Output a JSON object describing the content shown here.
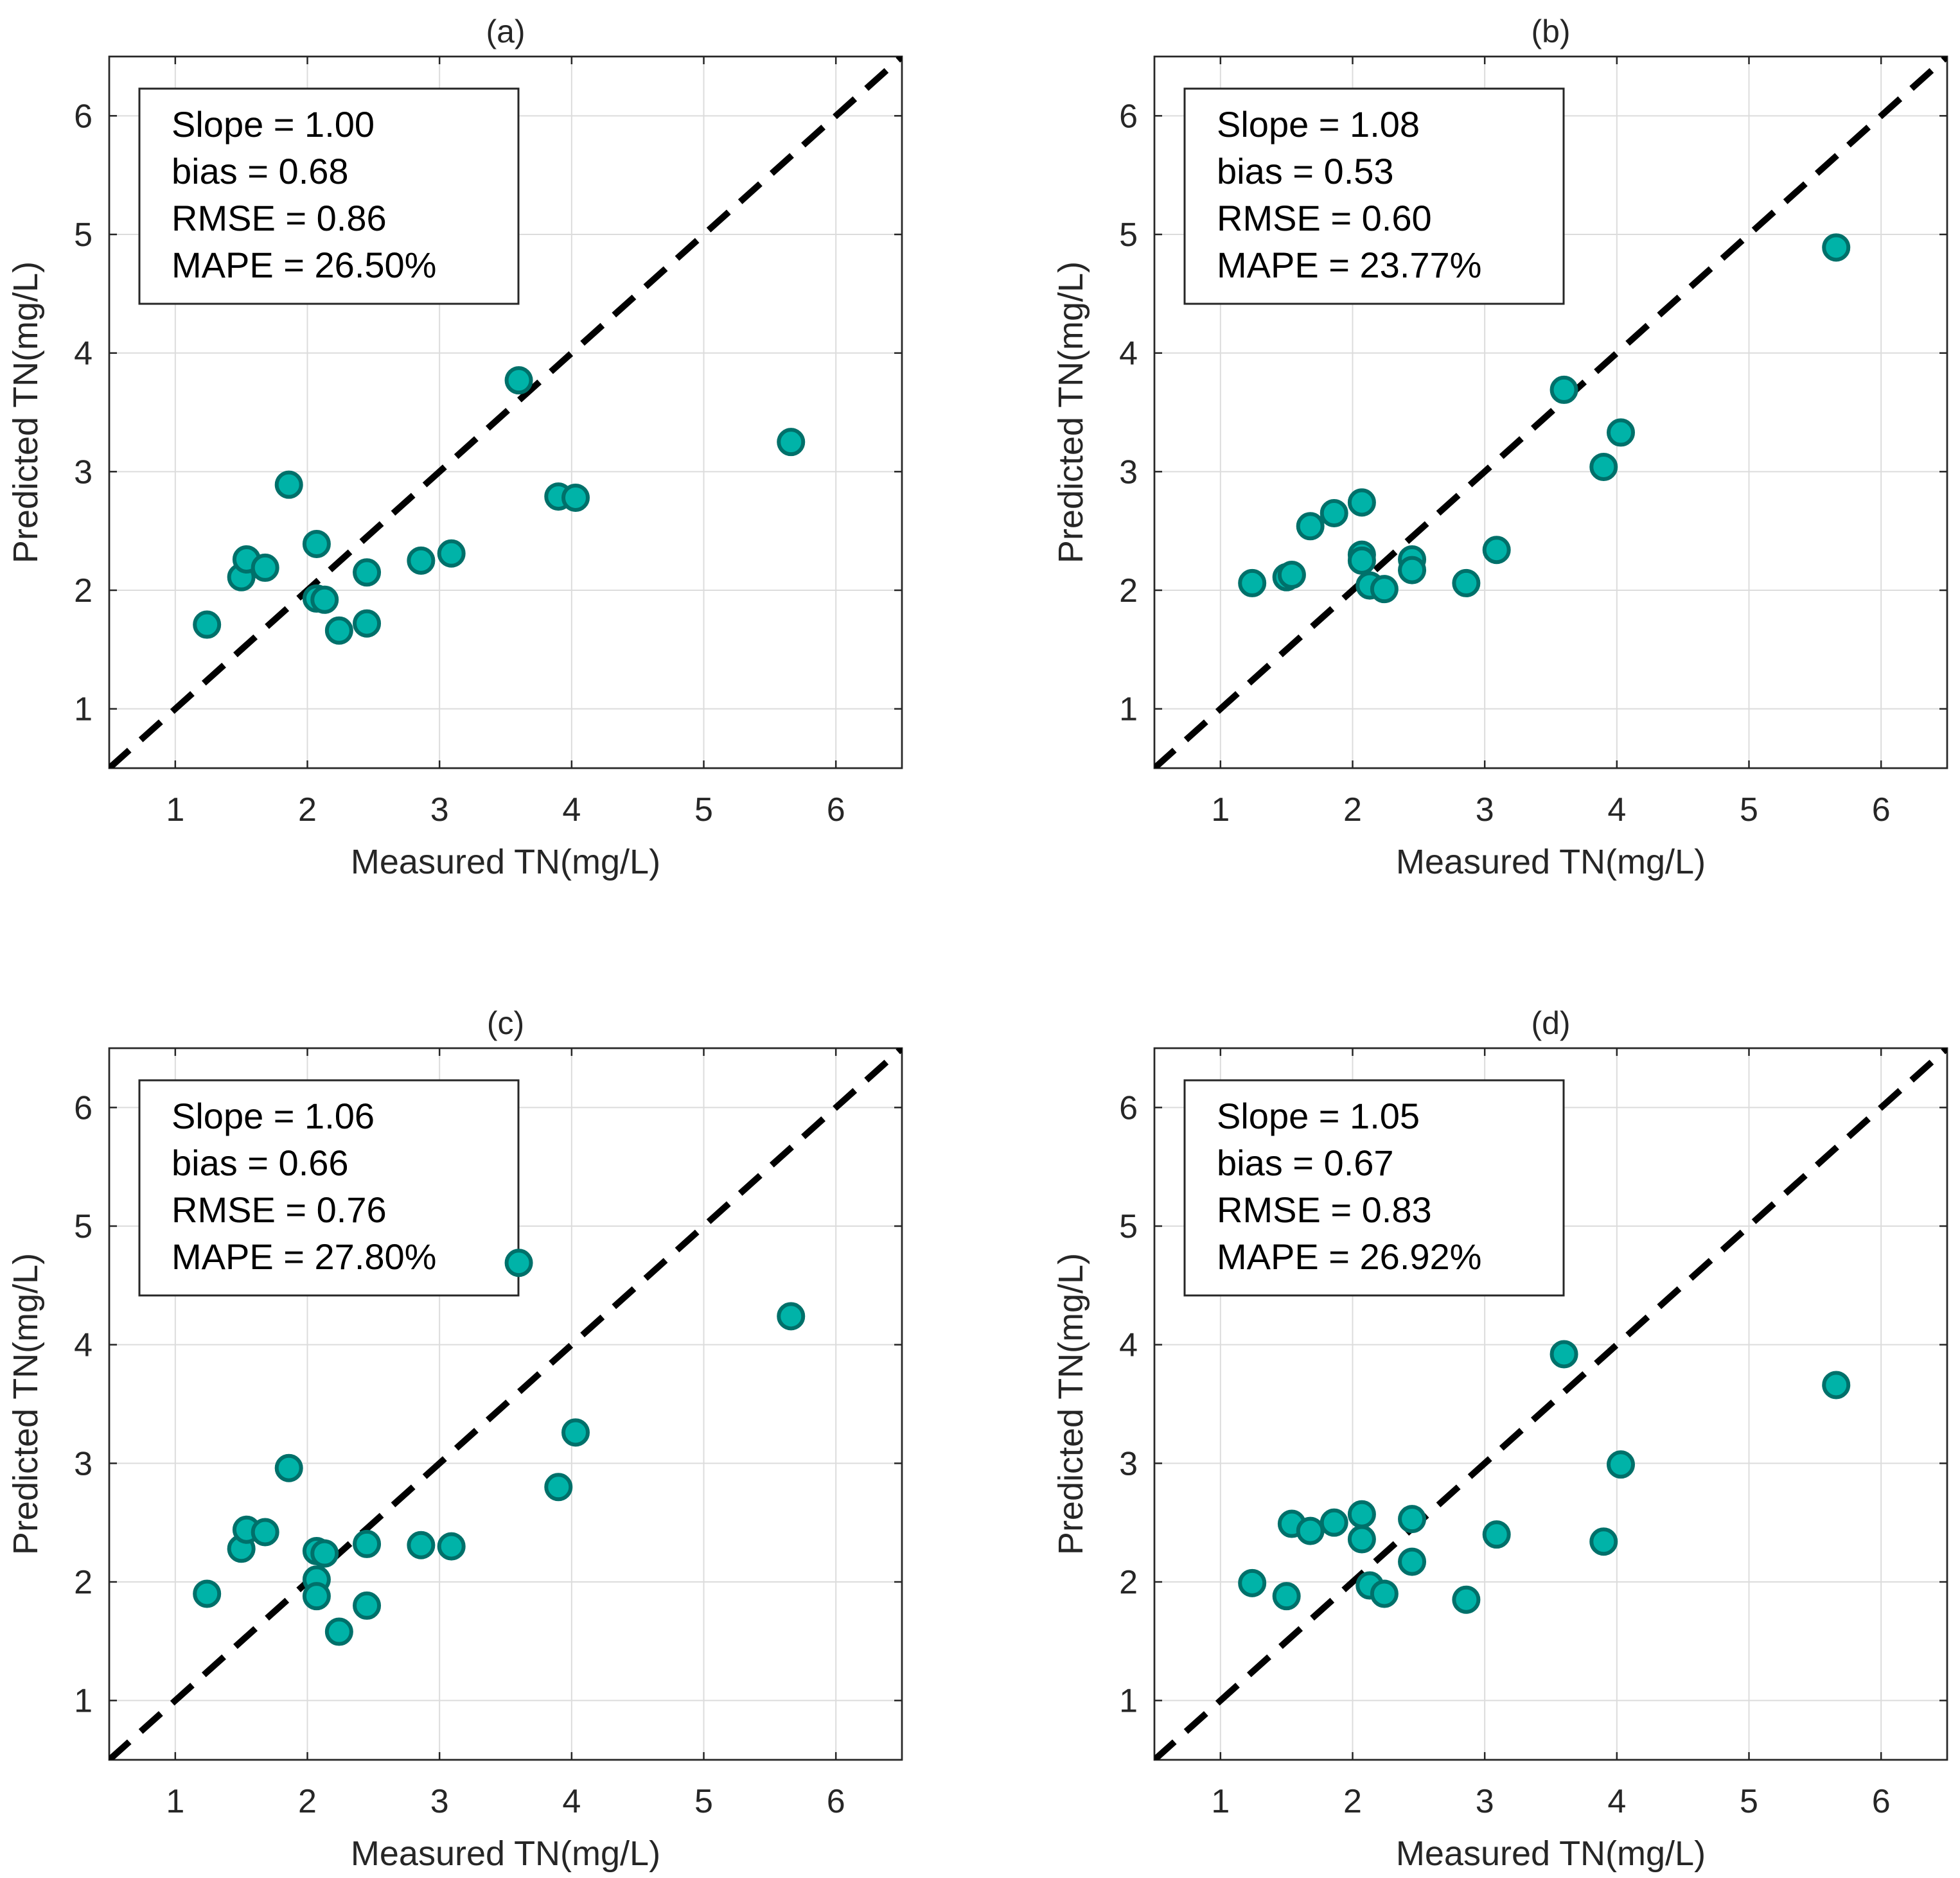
{
  "colors": {
    "point_fill": "#00b3a8",
    "point_edge": "#00706a",
    "identity_line": "#000000",
    "text": "#262626",
    "grid": "#dcdcdc"
  },
  "chart_data": [
    {
      "type": "scatter",
      "panel": "(a)",
      "title": "(a)",
      "xlabel": "Measured TN(mg/L)",
      "ylabel": "Predicted TN(mg/L)",
      "xlim": [
        0.5,
        6.5
      ],
      "ylim": [
        0.5,
        6.5
      ],
      "xticks": [
        "1",
        "2",
        "3",
        "4",
        "5",
        "6"
      ],
      "yticks": [
        "1",
        "2",
        "3",
        "4",
        "5",
        "6"
      ],
      "grid": true,
      "reference_line": "1:1 dashed",
      "stats": [
        "Slope = 1.00",
        "bias = 0.68",
        "RMSE = 0.86",
        "MAPE = 26.50%"
      ],
      "stats_position": "top-left",
      "points": [
        [
          1.24,
          1.71
        ],
        [
          1.5,
          2.11
        ],
        [
          1.54,
          2.26
        ],
        [
          1.68,
          2.19
        ],
        [
          1.86,
          2.89
        ],
        [
          2.07,
          2.39
        ],
        [
          2.07,
          1.93
        ],
        [
          2.13,
          1.92
        ],
        [
          2.24,
          1.66
        ],
        [
          2.45,
          2.15
        ],
        [
          2.45,
          1.72
        ],
        [
          2.86,
          2.25
        ],
        [
          3.09,
          2.31
        ],
        [
          3.6,
          3.77
        ],
        [
          3.9,
          2.79
        ],
        [
          4.03,
          2.78
        ],
        [
          5.66,
          3.25
        ]
      ]
    },
    {
      "type": "scatter",
      "panel": "(b)",
      "title": "(b)",
      "xlabel": "Measured TN(mg/L)",
      "ylabel": "Predicted TN(mg/L)",
      "xlim": [
        0.5,
        6.5
      ],
      "ylim": [
        0.5,
        6.5
      ],
      "xticks": [
        "1",
        "2",
        "3",
        "4",
        "5",
        "6"
      ],
      "yticks": [
        "1",
        "2",
        "3",
        "4",
        "5",
        "6"
      ],
      "grid": true,
      "reference_line": "1:1 dashed",
      "stats": [
        "Slope = 1.08",
        "bias = 0.53",
        "RMSE = 0.60",
        "MAPE = 23.77%"
      ],
      "stats_position": "top-left",
      "points": [
        [
          1.24,
          2.06
        ],
        [
          1.5,
          2.11
        ],
        [
          1.54,
          2.13
        ],
        [
          1.68,
          2.54
        ],
        [
          1.86,
          2.65
        ],
        [
          2.07,
          2.74
        ],
        [
          2.07,
          2.3
        ],
        [
          2.07,
          2.25
        ],
        [
          2.13,
          2.04
        ],
        [
          2.24,
          2.01
        ],
        [
          2.45,
          2.26
        ],
        [
          2.45,
          2.17
        ],
        [
          2.86,
          2.06
        ],
        [
          3.09,
          2.34
        ],
        [
          3.6,
          3.69
        ],
        [
          3.9,
          3.04
        ],
        [
          4.03,
          3.33
        ],
        [
          5.66,
          4.89
        ]
      ]
    },
    {
      "type": "scatter",
      "panel": "(c)",
      "title": "(c)",
      "xlabel": "Measured TN(mg/L)",
      "ylabel": "Predicted TN(mg/L)",
      "xlim": [
        0.5,
        6.5
      ],
      "ylim": [
        0.5,
        6.5
      ],
      "xticks": [
        "1",
        "2",
        "3",
        "4",
        "5",
        "6"
      ],
      "yticks": [
        "1",
        "2",
        "3",
        "4",
        "5",
        "6"
      ],
      "grid": true,
      "reference_line": "1:1 dashed",
      "stats": [
        "Slope = 1.06",
        "bias = 0.66",
        "RMSE = 0.76",
        "MAPE = 27.80%"
      ],
      "stats_position": "top-left",
      "points": [
        [
          1.24,
          1.9
        ],
        [
          1.5,
          2.28
        ],
        [
          1.54,
          2.44
        ],
        [
          1.68,
          2.42
        ],
        [
          1.86,
          2.96
        ],
        [
          2.07,
          2.26
        ],
        [
          2.13,
          2.24
        ],
        [
          2.07,
          2.02
        ],
        [
          2.07,
          1.88
        ],
        [
          2.24,
          1.58
        ],
        [
          2.45,
          2.32
        ],
        [
          2.45,
          1.8
        ],
        [
          2.86,
          2.31
        ],
        [
          3.09,
          2.3
        ],
        [
          3.6,
          4.69
        ],
        [
          3.9,
          2.8
        ],
        [
          4.03,
          3.26
        ],
        [
          5.66,
          4.24
        ]
      ]
    },
    {
      "type": "scatter",
      "panel": "(d)",
      "title": "(d)",
      "xlabel": "Measured TN(mg/L)",
      "ylabel": "Predicted TN(mg/L)",
      "xlim": [
        0.5,
        6.5
      ],
      "ylim": [
        0.5,
        6.5
      ],
      "xticks": [
        "1",
        "2",
        "3",
        "4",
        "5",
        "6"
      ],
      "yticks": [
        "1",
        "2",
        "3",
        "4",
        "5",
        "6"
      ],
      "grid": true,
      "reference_line": "1:1 dashed",
      "stats": [
        "Slope = 1.05",
        "bias = 0.67",
        "RMSE = 0.83",
        "MAPE = 26.92%"
      ],
      "stats_position": "top-left",
      "points": [
        [
          1.24,
          1.99
        ],
        [
          1.5,
          1.88
        ],
        [
          1.54,
          2.49
        ],
        [
          1.68,
          2.43
        ],
        [
          1.86,
          2.5
        ],
        [
          2.07,
          2.57
        ],
        [
          2.07,
          2.36
        ],
        [
          2.13,
          1.97
        ],
        [
          2.24,
          1.9
        ],
        [
          2.45,
          2.53
        ],
        [
          2.45,
          2.17
        ],
        [
          2.86,
          1.85
        ],
        [
          3.09,
          2.4
        ],
        [
          3.6,
          3.92
        ],
        [
          3.9,
          2.34
        ],
        [
          4.03,
          2.99
        ],
        [
          5.66,
          3.66
        ]
      ]
    }
  ]
}
